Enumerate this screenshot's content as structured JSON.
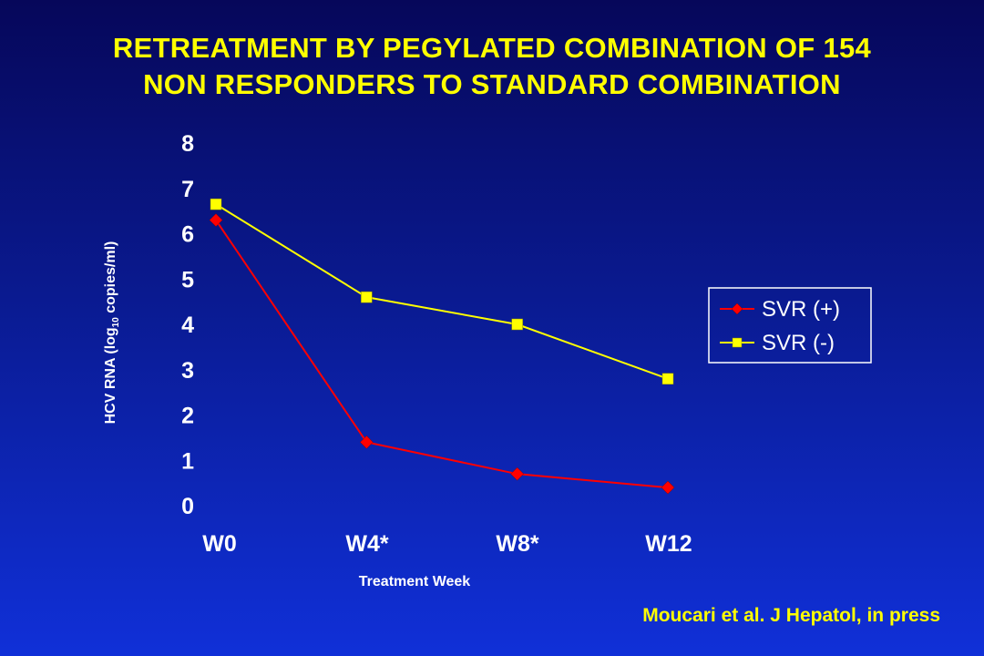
{
  "slide": {
    "title_line1": "RETREATMENT BY PEGYLATED COMBINATION OF 154",
    "title_line2": "NON RESPONDERS TO STANDARD COMBINATION",
    "citation": "Moucari et al. J Hepatol, in press"
  },
  "colors": {
    "title": "#ffff00",
    "svr_pos": "#ff0000",
    "svr_neg": "#ffff00",
    "axis_text": "#ffffff"
  },
  "chart_data": {
    "type": "line",
    "title": "RETREATMENT BY PEGYLATED COMBINATION OF 154 NON RESPONDERS TO STANDARD COMBINATION",
    "xlabel": "Treatment Week",
    "ylabel_main": "HCV RNA (log",
    "ylabel_sub": "10",
    "ylabel_rest": " copies/ml)",
    "categories": [
      "W0",
      "W4*",
      "W8*",
      "W12"
    ],
    "yticks": [
      "0",
      "1",
      "2",
      "3",
      "4",
      "5",
      "6",
      "7",
      "8"
    ],
    "ylim": [
      0,
      8
    ],
    "grid": false,
    "legend_position": "right",
    "series": [
      {
        "name": "SVR (+)",
        "values": [
          6.3,
          1.4,
          0.7,
          0.4
        ],
        "color": "#ff0000",
        "marker": "diamond"
      },
      {
        "name": "SVR (-)",
        "values": [
          6.65,
          4.6,
          4.0,
          2.8
        ],
        "color": "#ffff00",
        "marker": "square"
      }
    ]
  }
}
